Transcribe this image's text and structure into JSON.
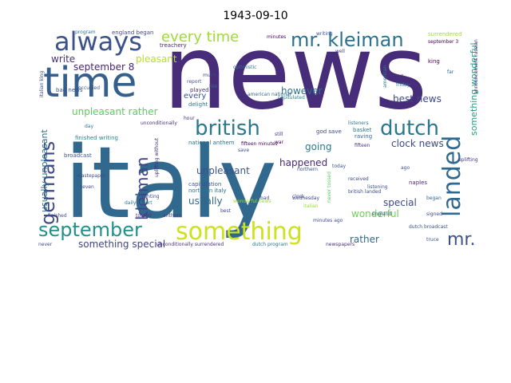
{
  "title": "1943-09-10",
  "words": [
    "news",
    "italy",
    "time",
    "always",
    "mr. kleiman",
    "every time",
    "british",
    "dutch",
    "landed",
    "germans",
    "kleiman",
    "september",
    "something",
    "mr.",
    "september 8",
    "pleasant",
    "write",
    "unpleasant rather",
    "usually unpleasant",
    "however",
    "best news",
    "clock news",
    "happened",
    "going",
    "unpleasant",
    "usually",
    "every",
    "special",
    "wonderful",
    "rather",
    "something special",
    "something wonderful",
    "treachery",
    "england began",
    "program",
    "minutes",
    "writing",
    "surrendered",
    "september 3",
    "played",
    "optimistic",
    "well",
    "american",
    "king",
    "occupied",
    "much",
    "report",
    "delight",
    "like",
    "tell",
    "friday",
    "far",
    "bad news",
    "american national",
    "capitulated",
    "announcement russian",
    "unconditionally",
    "day",
    "god save",
    "basket",
    "raving",
    "finished writing",
    "national anthem",
    "fifteen minutes",
    "fifteen",
    "ago",
    "broadcast",
    "uplifting without",
    "capitulation",
    "northern italy",
    "northern",
    "received",
    "british landed",
    "naples",
    "seven",
    "mastepaper",
    "daily report",
    "ranting",
    "hour",
    "bad",
    "wednesday",
    "listening",
    "today",
    "never tossed",
    "clock",
    "italian",
    "began",
    "tossed",
    "anthem",
    "best",
    "england",
    "signed",
    "finished",
    "minutes ago",
    "truce",
    "never",
    "unconditionally surrendered",
    "dutch program",
    "newspapers",
    "dutch broadcast",
    "wonderful news",
    "still",
    "war",
    "save",
    "uplifting",
    "listeners",
    "italian king"
  ]
}
